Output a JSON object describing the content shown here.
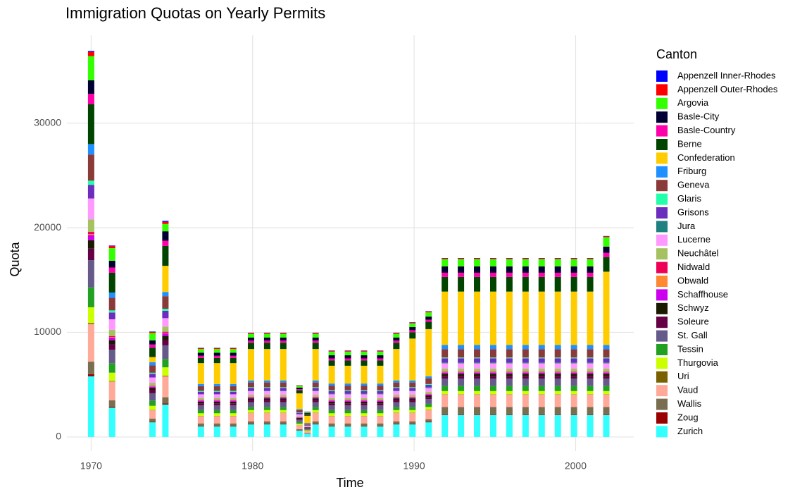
{
  "chart_data": {
    "type": "stacked_bar",
    "title": "Immigration Quotas on Yearly Permits",
    "x_label": "Time",
    "y_label": "Quota",
    "legend_title": "Canton",
    "legend_position": "right",
    "grid": true,
    "xlim": [
      1968.5,
      2003.6
    ],
    "xticks": [
      1970,
      1980,
      1990,
      2000
    ],
    "ylim": [
      -1350,
      38400
    ],
    "yticks": [
      0,
      10000,
      20000,
      30000
    ],
    "x": [
      1970.0,
      1971.3,
      1973.8,
      1974.6,
      1976.8,
      1977.8,
      1978.8,
      1979.9,
      1980.9,
      1981.9,
      1982.9,
      1983.4,
      1983.9,
      1984.9,
      1985.9,
      1986.9,
      1987.9,
      1988.9,
      1989.9,
      1990.9,
      1991.9,
      1992.9,
      1993.9,
      1994.9,
      1995.9,
      1996.9,
      1997.9,
      1998.9,
      1999.9,
      2000.9,
      2001.9
    ],
    "series": [
      {
        "name": "Appenzell Inner-Rhodes",
        "color": "#0000ff",
        "values": [
          100,
          50,
          40,
          100,
          30,
          30,
          30,
          30,
          30,
          30,
          15,
          10,
          30,
          30,
          30,
          30,
          30,
          30,
          30,
          30,
          30,
          30,
          30,
          30,
          30,
          30,
          30,
          30,
          30,
          30,
          30
        ]
      },
      {
        "name": "Appenzell Outer-Rhodes",
        "color": "#ff0000",
        "values": [
          400,
          200,
          100,
          200,
          80,
          80,
          80,
          80,
          80,
          80,
          40,
          20,
          80,
          80,
          80,
          80,
          80,
          80,
          80,
          80,
          80,
          80,
          80,
          80,
          80,
          80,
          80,
          80,
          80,
          80,
          80
        ]
      },
      {
        "name": "Argovia",
        "color": "#33ff00",
        "values": [
          2300,
          1200,
          700,
          700,
          350,
          350,
          350,
          350,
          350,
          350,
          180,
          90,
          350,
          350,
          350,
          350,
          350,
          350,
          350,
          400,
          700,
          700,
          700,
          700,
          700,
          700,
          700,
          700,
          700,
          700,
          900
        ]
      },
      {
        "name": "Basle-City",
        "color": "#000033",
        "values": [
          1300,
          650,
          400,
          900,
          300,
          300,
          300,
          300,
          300,
          300,
          150,
          80,
          300,
          300,
          300,
          300,
          300,
          300,
          300,
          300,
          600,
          600,
          600,
          600,
          600,
          600,
          600,
          600,
          600,
          600,
          600
        ]
      },
      {
        "name": "Basle-Country",
        "color": "#ff00aa",
        "values": [
          1000,
          500,
          300,
          500,
          200,
          200,
          200,
          200,
          200,
          200,
          100,
          50,
          200,
          200,
          200,
          200,
          200,
          200,
          200,
          200,
          400,
          400,
          400,
          400,
          400,
          400,
          400,
          400,
          400,
          400,
          400
        ]
      },
      {
        "name": "Berne",
        "color": "#004400",
        "values": [
          3800,
          1900,
          900,
          1900,
          500,
          500,
          500,
          600,
          600,
          600,
          300,
          150,
          600,
          500,
          500,
          500,
          500,
          600,
          600,
          700,
          1400,
          1400,
          1400,
          1400,
          1400,
          1400,
          1400,
          1400,
          1400,
          1400,
          1400
        ]
      },
      {
        "name": "Confederation",
        "color": "#ffcc00",
        "values": [
          0,
          0,
          500,
          2500,
          2000,
          2000,
          2000,
          3000,
          3000,
          3000,
          1500,
          700,
          3000,
          1700,
          1700,
          1700,
          1700,
          3000,
          4000,
          4500,
          5100,
          5100,
          5100,
          5100,
          5100,
          5100,
          5100,
          5100,
          5100,
          5100,
          7000
        ]
      },
      {
        "name": "Friburg",
        "color": "#1e90ff",
        "values": [
          1000,
          500,
          300,
          400,
          200,
          200,
          200,
          200,
          200,
          200,
          100,
          50,
          200,
          200,
          200,
          200,
          200,
          200,
          200,
          200,
          400,
          400,
          400,
          400,
          400,
          400,
          400,
          400,
          400,
          400,
          400
        ]
      },
      {
        "name": "Geneva",
        "color": "#8b3a3a",
        "values": [
          2500,
          1200,
          700,
          1200,
          450,
          450,
          450,
          450,
          450,
          450,
          220,
          110,
          450,
          450,
          450,
          450,
          450,
          450,
          450,
          550,
          800,
          800,
          800,
          800,
          800,
          800,
          800,
          800,
          800,
          800,
          800
        ]
      },
      {
        "name": "Glaris",
        "color": "#22ffaa",
        "values": [
          400,
          200,
          100,
          200,
          80,
          80,
          80,
          80,
          80,
          80,
          40,
          20,
          80,
          80,
          80,
          80,
          80,
          80,
          80,
          80,
          80,
          80,
          80,
          80,
          80,
          80,
          80,
          80,
          80,
          80,
          80
        ]
      },
      {
        "name": "Grisons",
        "color": "#6a2dbd",
        "values": [
          1300,
          650,
          350,
          700,
          250,
          250,
          250,
          250,
          250,
          250,
          120,
          60,
          250,
          250,
          250,
          250,
          250,
          250,
          250,
          250,
          400,
          400,
          400,
          400,
          400,
          400,
          400,
          400,
          400,
          400,
          400
        ]
      },
      {
        "name": "Jura",
        "color": "#1f8080",
        "values": [
          0,
          0,
          0,
          0,
          0,
          0,
          0,
          50,
          50,
          50,
          25,
          10,
          50,
          50,
          50,
          50,
          50,
          50,
          50,
          50,
          80,
          80,
          80,
          80,
          80,
          80,
          80,
          80,
          80,
          80,
          80
        ]
      },
      {
        "name": "Lucerne",
        "color": "#ff99ff",
        "values": [
          2000,
          1000,
          500,
          800,
          350,
          350,
          350,
          350,
          350,
          350,
          170,
          80,
          350,
          350,
          350,
          350,
          350,
          350,
          350,
          350,
          500,
          500,
          500,
          500,
          500,
          500,
          500,
          500,
          500,
          500,
          500
        ]
      },
      {
        "name": "Neuchâtel",
        "color": "#a6c160",
        "values": [
          1200,
          600,
          300,
          500,
          200,
          200,
          200,
          200,
          200,
          200,
          100,
          50,
          200,
          200,
          200,
          200,
          200,
          200,
          200,
          200,
          300,
          300,
          300,
          300,
          300,
          300,
          300,
          300,
          300,
          300,
          300
        ]
      },
      {
        "name": "Nidwald",
        "color": "#ee0055",
        "values": [
          200,
          100,
          50,
          100,
          40,
          40,
          40,
          40,
          40,
          40,
          20,
          10,
          40,
          40,
          40,
          40,
          40,
          40,
          40,
          40,
          50,
          50,
          50,
          50,
          50,
          50,
          50,
          50,
          50,
          50,
          50
        ]
      },
      {
        "name": "Obwald",
        "color": "#ff8833",
        "values": [
          100,
          50,
          30,
          50,
          20,
          20,
          20,
          20,
          20,
          20,
          10,
          5,
          20,
          20,
          20,
          20,
          20,
          20,
          20,
          20,
          30,
          30,
          30,
          30,
          30,
          30,
          30,
          30,
          30,
          30,
          30
        ]
      },
      {
        "name": "Schaffhouse",
        "color": "#cc00ee",
        "values": [
          500,
          250,
          130,
          250,
          100,
          100,
          100,
          100,
          100,
          100,
          50,
          25,
          100,
          100,
          100,
          100,
          100,
          100,
          100,
          100,
          120,
          120,
          120,
          120,
          120,
          120,
          120,
          120,
          120,
          120,
          120
        ]
      },
      {
        "name": "Schwyz",
        "color": "#1a1a00",
        "values": [
          800,
          400,
          200,
          400,
          150,
          150,
          150,
          150,
          150,
          150,
          70,
          35,
          150,
          150,
          150,
          150,
          150,
          150,
          150,
          150,
          200,
          200,
          200,
          200,
          200,
          200,
          200,
          200,
          200,
          200,
          200
        ]
      },
      {
        "name": "Soleure",
        "color": "#660044",
        "values": [
          1100,
          500,
          300,
          500,
          200,
          200,
          200,
          200,
          200,
          200,
          100,
          50,
          200,
          200,
          200,
          200,
          200,
          200,
          200,
          200,
          250,
          250,
          250,
          250,
          250,
          250,
          250,
          250,
          250,
          250,
          250
        ]
      },
      {
        "name": "St. Gall",
        "color": "#665a8a",
        "values": [
          2600,
          1300,
          700,
          1300,
          450,
          450,
          450,
          450,
          450,
          450,
          220,
          110,
          450,
          450,
          450,
          450,
          450,
          450,
          450,
          450,
          700,
          700,
          700,
          700,
          700,
          700,
          700,
          700,
          700,
          700,
          700
        ]
      },
      {
        "name": "Tessin",
        "color": "#22a022",
        "values": [
          1900,
          900,
          500,
          800,
          300,
          300,
          300,
          300,
          300,
          300,
          150,
          80,
          300,
          300,
          300,
          300,
          300,
          300,
          300,
          300,
          500,
          500,
          500,
          500,
          500,
          500,
          500,
          500,
          500,
          500,
          500
        ]
      },
      {
        "name": "Thurgovia",
        "color": "#ccff00",
        "values": [
          1500,
          800,
          400,
          800,
          250,
          250,
          250,
          250,
          250,
          250,
          120,
          60,
          250,
          250,
          250,
          250,
          250,
          250,
          250,
          250,
          300,
          300,
          300,
          300,
          300,
          300,
          300,
          300,
          300,
          300,
          300
        ]
      },
      {
        "name": "Uri",
        "color": "#7a6000",
        "values": [
          100,
          50,
          30,
          60,
          20,
          20,
          20,
          20,
          20,
          20,
          10,
          5,
          20,
          20,
          20,
          20,
          20,
          20,
          20,
          20,
          30,
          30,
          30,
          30,
          30,
          30,
          30,
          30,
          30,
          30,
          30
        ]
      },
      {
        "name": "Vaud",
        "color": "#ffaa99",
        "values": [
          3600,
          1800,
          800,
          2000,
          700,
          700,
          700,
          800,
          800,
          800,
          400,
          200,
          800,
          700,
          700,
          700,
          700,
          800,
          800,
          900,
          1200,
          1200,
          1200,
          1200,
          1200,
          1200,
          1200,
          1200,
          1200,
          1200,
          1200
        ]
      },
      {
        "name": "Wallis",
        "color": "#7a6e50",
        "values": [
          1200,
          600,
          300,
          600,
          250,
          250,
          250,
          250,
          250,
          250,
          120,
          60,
          250,
          250,
          250,
          250,
          250,
          250,
          250,
          250,
          700,
          700,
          700,
          700,
          700,
          700,
          700,
          700,
          700,
          700,
          700
        ]
      },
      {
        "name": "Zoug",
        "color": "#990000",
        "values": [
          200,
          100,
          50,
          100,
          50,
          50,
          50,
          50,
          50,
          50,
          25,
          10,
          50,
          50,
          50,
          50,
          50,
          50,
          50,
          50,
          60,
          60,
          60,
          60,
          60,
          60,
          60,
          60,
          60,
          60,
          60
        ]
      },
      {
        "name": "Zurich",
        "color": "#33ffff",
        "values": [
          5800,
          2800,
          1400,
          3100,
          1000,
          1000,
          1000,
          1200,
          1200,
          1200,
          600,
          300,
          1200,
          1000,
          1000,
          1000,
          1000,
          1200,
          1200,
          1400,
          2100,
          2100,
          2100,
          2100,
          2100,
          2100,
          2100,
          2100,
          2100,
          2100,
          2100
        ]
      }
    ]
  }
}
